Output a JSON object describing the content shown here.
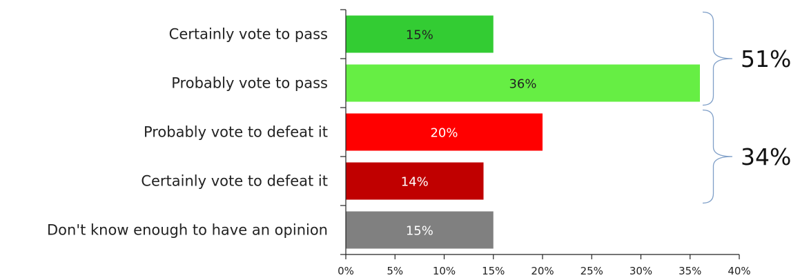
{
  "chart_data": {
    "type": "bar",
    "orientation": "horizontal",
    "categories": [
      "Certainly vote to pass",
      "Probably vote to pass",
      "Probably vote to defeat it",
      "Certainly vote to defeat it",
      "Don't know enough to have an opinion"
    ],
    "values": [
      15,
      36,
      20,
      14,
      15
    ],
    "data_labels": [
      "15%",
      "36%",
      "20%",
      "14%",
      "15%"
    ],
    "bar_colors": [
      "#33cc33",
      "#66ee44",
      "#ff0000",
      "#c00000",
      "#808080"
    ],
    "label_colors": [
      "#222222",
      "#222222",
      "#ffffff",
      "#ffffff",
      "#ffffff"
    ],
    "xlim": [
      0,
      40
    ],
    "x_ticks": [
      0,
      5,
      10,
      15,
      20,
      25,
      30,
      35,
      40
    ],
    "x_tick_labels": [
      "0%",
      "5%",
      "10%",
      "15%",
      "20%",
      "25%",
      "30%",
      "35%",
      "40%"
    ],
    "grid": false,
    "groups": [
      {
        "label": "51%",
        "from": 0,
        "to": 1
      },
      {
        "label": "34%",
        "from": 2,
        "to": 3
      }
    ],
    "bracket_color": "#7f9fc8"
  }
}
